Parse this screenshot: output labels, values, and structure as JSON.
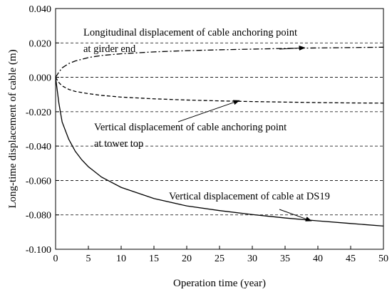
{
  "chart_data": {
    "type": "line",
    "xlabel": "Operation time (year)",
    "ylabel": "Long-time displacement of cable (m)",
    "xlim": [
      0,
      50
    ],
    "ylim": [
      -0.1,
      0.04
    ],
    "x_ticks": [
      "0",
      "5",
      "10",
      "15",
      "20",
      "25",
      "30",
      "35",
      "40",
      "45",
      "50"
    ],
    "y_ticks": [
      "0.040",
      "0.020",
      "0.000",
      "-0.020",
      "-0.040",
      "-0.060",
      "-0.080",
      "-0.100"
    ],
    "grid": "horizontal dashed",
    "series": [
      {
        "name": "Longitudinal displacement of cable anchoring point at girder end",
        "style": "dash-dot",
        "x": [
          0,
          0.5,
          1,
          2,
          3,
          5,
          7,
          10,
          15,
          20,
          25,
          30,
          35,
          40,
          45,
          50
        ],
        "y": [
          0,
          0.003,
          0.0055,
          0.008,
          0.0095,
          0.0115,
          0.0127,
          0.0137,
          0.0148,
          0.0155,
          0.016,
          0.0164,
          0.0168,
          0.0171,
          0.0173,
          0.0175
        ]
      },
      {
        "name": "Vertical displacement of cable anchoring point at tower top",
        "style": "dashed",
        "x": [
          0,
          0.5,
          1,
          2,
          3,
          5,
          7,
          10,
          15,
          20,
          25,
          30,
          35,
          40,
          45,
          50
        ],
        "y": [
          0,
          -0.003,
          -0.005,
          -0.007,
          -0.0082,
          -0.0095,
          -0.0105,
          -0.0115,
          -0.0125,
          -0.0132,
          -0.0137,
          -0.0141,
          -0.0144,
          -0.0147,
          -0.0149,
          -0.015
        ]
      },
      {
        "name": "Vertical displacement of cable at DS19",
        "style": "solid",
        "x": [
          0,
          0.5,
          1,
          2,
          3,
          4,
          5,
          7,
          10,
          15,
          20,
          25,
          30,
          35,
          40,
          45,
          50
        ],
        "y": [
          0,
          -0.015,
          -0.026,
          -0.036,
          -0.043,
          -0.048,
          -0.052,
          -0.058,
          -0.064,
          -0.0705,
          -0.0748,
          -0.0775,
          -0.0798,
          -0.0818,
          -0.0835,
          -0.085,
          -0.0865
        ]
      }
    ],
    "annotations": [
      {
        "lines": [
          "Longitudinal displacement of cable anchoring point",
          "at girder end"
        ],
        "arrow_to": [
          38,
          0.0172
        ]
      },
      {
        "lines": [
          "Vertical displacement of cable anchoring point",
          "at tower top"
        ],
        "arrow_to": [
          28,
          -0.0135
        ]
      },
      {
        "lines": [
          "Vertical displacement of cable at DS19"
        ],
        "arrow_to": [
          39,
          -0.0835
        ]
      }
    ]
  }
}
